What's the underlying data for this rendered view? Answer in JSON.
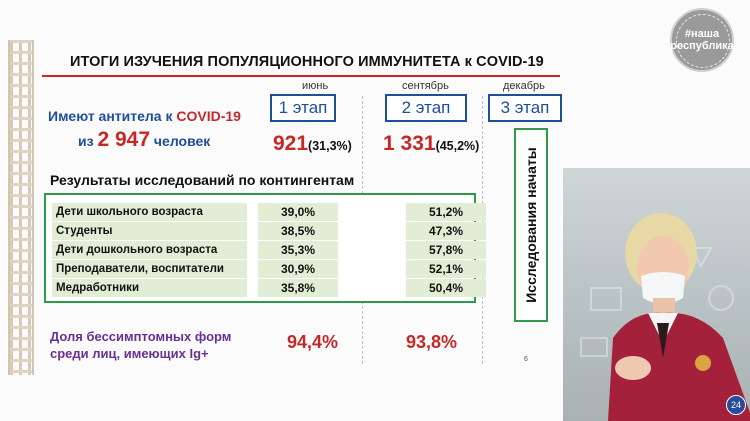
{
  "slide": {
    "title": "ИТОГИ ИЗУЧЕНИЯ ПОПУЛЯЦИОННОГО ИММУНИТЕТА к COVID-19",
    "antibodies_label_1": "Имеют антитела к",
    "antibodies_label_covid": "COVID-19",
    "antibodies_label_2_prefix": "из",
    "antibodies_total": "2 947",
    "antibodies_label_2_suffix": "человек",
    "months": [
      "июнь",
      "сентябрь",
      "декабрь"
    ],
    "stages": [
      "1 этап",
      "2 этап",
      "3 этап"
    ],
    "stage1_value": "921",
    "stage1_pct": "(31,3%)",
    "stage2_value": "1 331",
    "stage2_pct": "(45,2%)",
    "results_title": "Результаты исследований по контингентам",
    "contingents": [
      {
        "label": "Дети школьного возраста",
        "stage1": "39,0%",
        "stage2": "51,2%"
      },
      {
        "label": "Студенты",
        "stage1": "38,5%",
        "stage2": "47,3%"
      },
      {
        "label": "Дети дошкольного возраста",
        "stage1": "35,3%",
        "stage2": "57,8%"
      },
      {
        "label": "Преподаватели, воспитатели",
        "stage1": "30,9%",
        "stage2": "52,1%"
      },
      {
        "label": "Медработники",
        "stage1": "35,8%",
        "stage2": "50,4%"
      }
    ],
    "stage3_status": "Исследования начаты",
    "share_line1": "Доля  бессимптомных форм",
    "share_line2": "среди лиц, имеющих Ig+",
    "share_stage1": "94,4%",
    "share_stage2": "93,8%",
    "footnote": "6"
  },
  "logo": {
    "line1": "#наша",
    "line2": "республика"
  },
  "video_badge": "24",
  "colors": {
    "accent_blue": "#1f4e9b",
    "accent_red": "#c62828",
    "accent_green": "#2e9b4b",
    "accent_purple": "#6a2f93"
  }
}
